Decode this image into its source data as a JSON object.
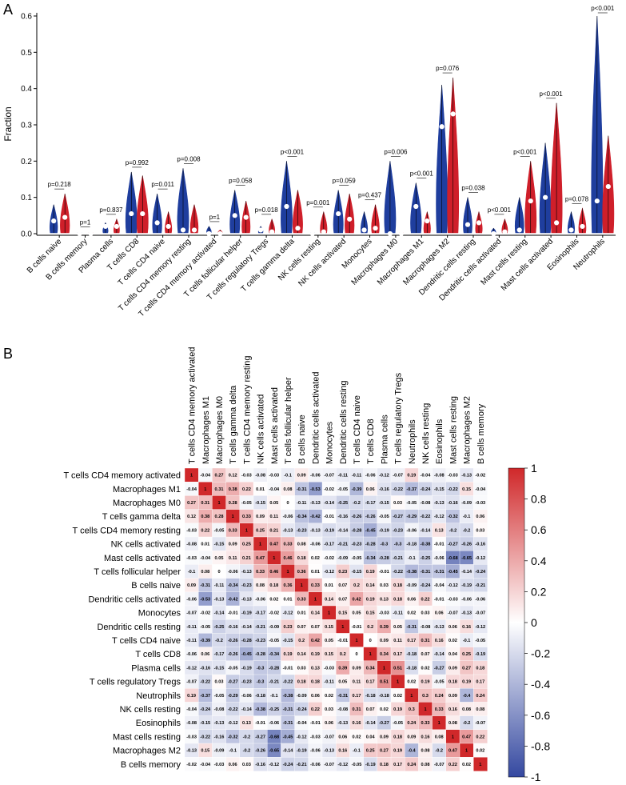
{
  "panel_a": {
    "letter": "A",
    "ylabel": "Fraction",
    "colors": {
      "group1": "#1f3e9e",
      "group2": "#cf1f2a"
    },
    "chart_data": {
      "type": "violin",
      "ylabel": "Fraction",
      "ylim": [
        0,
        0.6
      ],
      "yticks": [
        "0.0",
        "0.1",
        "0.2",
        "0.3",
        "0.4",
        "0.5",
        "0.6"
      ],
      "categories": [
        "B cells naive",
        "B cells memory",
        "Plasma cells",
        "T cells CD8",
        "T cells CD4 naive",
        "T cells CD4 memory resting",
        "T cells CD4 memory activated",
        "T cells follicular helper",
        "T cells regulatory  Tregs",
        "T cells gamma delta",
        "NK cells resting",
        "NK cells activated",
        "Monocytes",
        "Macrophages M0",
        "Macrophages M1",
        "Macrophages M2",
        "Dendritic cells resting",
        "Dendritic cells activated",
        "Mast cells resting",
        "Mast cells activated",
        "Eosinophils",
        "Neutrophils"
      ],
      "pvalues": [
        "p=0.218",
        "p=1",
        "p=0.837",
        "p=0.992",
        "p=0.011",
        "p=0.008",
        "p=1",
        "p=0.058",
        "p=0.018",
        "p<0.001",
        "p=0.001",
        "p=0.059",
        "p=0.437",
        "p=0.006",
        "p<0.001",
        "p=0.076",
        "p=0.038",
        "p<0.001",
        "p<0.001",
        "p<0.001",
        "p=0.078",
        "p<0.001"
      ],
      "series": [
        {
          "name": "group1",
          "max": [
            0.08,
            0.005,
            0.03,
            0.17,
            0.11,
            0.18,
            0.02,
            0.12,
            0.02,
            0.2,
            0.005,
            0.12,
            0.06,
            0.2,
            0.14,
            0.41,
            0.1,
            0.015,
            0.1,
            0.25,
            0.06,
            0.6
          ],
          "median": [
            0.035,
            0.0,
            0.02,
            0.055,
            0.03,
            0.01,
            0.0,
            0.05,
            0.01,
            0.075,
            0.0,
            0.055,
            0.01,
            0.0,
            0.075,
            0.295,
            0.025,
            0.0,
            0.01,
            0.1,
            0.01,
            0.09
          ]
        },
        {
          "name": "group2",
          "max": [
            0.11,
            0.005,
            0.04,
            0.16,
            0.06,
            0.08,
            0.01,
            0.09,
            0.04,
            0.12,
            0.06,
            0.11,
            0.08,
            0.005,
            0.06,
            0.43,
            0.06,
            0.04,
            0.2,
            0.36,
            0.07,
            0.27
          ],
          "median": [
            0.045,
            0.0,
            0.02,
            0.055,
            0.02,
            0.01,
            0.0,
            0.045,
            0.005,
            0.015,
            0.005,
            0.04,
            0.015,
            0.0,
            0.035,
            0.33,
            0.03,
            0.005,
            0.09,
            0.03,
            0.02,
            0.13
          ]
        }
      ]
    }
  },
  "panel_b": {
    "letter": "B",
    "chart_data": {
      "type": "heatmap",
      "col_labels": [
        "T cells CD4 memory activated",
        "Macrophages M1",
        "Macrophages M0",
        "T cells gamma delta",
        "T cells CD4 memory resting",
        "NK cells activated",
        "Mast cells activated",
        "T cells follicular helper",
        "B cells naive",
        "Dendritic cells activated",
        "Monocytes",
        "Dendritic cells resting",
        "T cells CD4 naive",
        "T cells CD8",
        "Plasma cells",
        "T cells regulatory  Tregs",
        "Neutrophils",
        "NK cells resting",
        "Eosinophils",
        "Mast cells resting",
        "Macrophages M2",
        "B cells memory"
      ],
      "row_labels": [
        "T cells CD4 memory activated",
        "Macrophages M1",
        "Macrophages M0",
        "T cells gamma delta",
        "T cells CD4 memory resting",
        "NK cells activated",
        "Mast cells activated",
        "T cells follicular helper",
        "B cells naive",
        "Dendritic cells activated",
        "Monocytes",
        "Dendritic cells resting",
        "T cells CD4 naive",
        "T cells CD8",
        "Plasma cells",
        "T cells regulatory  Tregs",
        "Neutrophils",
        "NK cells resting",
        "Eosinophils",
        "Mast cells resting",
        "Macrophages M2",
        "B cells memory"
      ],
      "values": [
        [
          "1",
          "-0.04",
          "0.27",
          "0.12",
          "-0.03",
          "-0.08",
          "-0.03",
          "-0.1",
          "0.09",
          "-0.06",
          "-0.07",
          "-0.11",
          "-0.11",
          "-0.06",
          "-0.12",
          "-0.07",
          "0.19",
          "-0.04",
          "-0.08",
          "-0.03",
          "-0.13",
          "-0.02"
        ],
        [
          "-0.04",
          "1",
          "0.31",
          "0.38",
          "0.22",
          "0.01",
          "-0.04",
          "0.08",
          "-0.31",
          "-0.53",
          "-0.02",
          "-0.05",
          "-0.39",
          "0.06",
          "-0.16",
          "-0.22",
          "-0.37",
          "-0.24",
          "-0.15",
          "-0.22",
          "0.15",
          "-0.04"
        ],
        [
          "0.27",
          "0.31",
          "1",
          "0.28",
          "-0.05",
          "-0.15",
          "0.05",
          "0",
          "-0.11",
          "-0.13",
          "-0.14",
          "-0.25",
          "-0.2",
          "-0.17",
          "-0.15",
          "0.03",
          "-0.05",
          "-0.08",
          "-0.13",
          "-0.16",
          "-0.09",
          "-0.03"
        ],
        [
          "0.12",
          "0.38",
          "0.28",
          "1",
          "0.33",
          "0.09",
          "0.11",
          "-0.06",
          "-0.34",
          "-0.42",
          "-0.01",
          "-0.16",
          "-0.26",
          "-0.26",
          "-0.05",
          "-0.27",
          "-0.29",
          "-0.22",
          "-0.12",
          "-0.32",
          "-0.1",
          "0.06"
        ],
        [
          "-0.03",
          "0.22",
          "-0.05",
          "0.33",
          "1",
          "0.25",
          "0.21",
          "-0.13",
          "-0.23",
          "-0.13",
          "-0.19",
          "-0.14",
          "-0.28",
          "-0.45",
          "-0.19",
          "-0.23",
          "-0.06",
          "-0.14",
          "0.13",
          "-0.2",
          "-0.2",
          "0.03"
        ],
        [
          "-0.08",
          "0.01",
          "-0.15",
          "0.09",
          "0.25",
          "1",
          "0.47",
          "0.33",
          "0.08",
          "-0.06",
          "-0.17",
          "-0.21",
          "-0.23",
          "-0.28",
          "-0.3",
          "-0.3",
          "-0.18",
          "-0.38",
          "-0.01",
          "-0.27",
          "-0.26",
          "-0.16"
        ],
        [
          "-0.03",
          "-0.04",
          "0.05",
          "0.11",
          "0.21",
          "0.47",
          "1",
          "0.46",
          "0.18",
          "0.02",
          "-0.02",
          "-0.09",
          "-0.05",
          "-0.34",
          "-0.28",
          "-0.21",
          "-0.1",
          "-0.25",
          "-0.06",
          "-0.68",
          "-0.65",
          "-0.12"
        ],
        [
          "-0.1",
          "0.08",
          "0",
          "-0.06",
          "-0.13",
          "0.33",
          "0.46",
          "1",
          "0.36",
          "0.01",
          "-0.12",
          "0.23",
          "-0.15",
          "0.19",
          "-0.01",
          "-0.22",
          "-0.38",
          "-0.31",
          "-0.31",
          "-0.45",
          "-0.14",
          "-0.24"
        ],
        [
          "0.09",
          "-0.31",
          "-0.11",
          "-0.34",
          "-0.23",
          "0.08",
          "0.18",
          "0.36",
          "1",
          "0.33",
          "0.01",
          "0.07",
          "0.2",
          "0.14",
          "0.03",
          "0.18",
          "-0.09",
          "-0.24",
          "-0.04",
          "-0.12",
          "-0.19",
          "-0.21"
        ],
        [
          "-0.06",
          "-0.53",
          "-0.13",
          "-0.42",
          "-0.13",
          "-0.06",
          "0.02",
          "0.01",
          "0.33",
          "1",
          "0.14",
          "0.07",
          "0.42",
          "0.19",
          "0.13",
          "0.18",
          "0.06",
          "0.22",
          "-0.01",
          "-0.03",
          "-0.06",
          "-0.06"
        ],
        [
          "-0.07",
          "-0.02",
          "-0.14",
          "-0.01",
          "-0.19",
          "-0.17",
          "-0.02",
          "-0.12",
          "0.01",
          "0.14",
          "1",
          "0.15",
          "0.05",
          "0.15",
          "-0.03",
          "-0.11",
          "0.02",
          "0.03",
          "0.06",
          "-0.07",
          "-0.13",
          "-0.07"
        ],
        [
          "-0.11",
          "-0.05",
          "-0.25",
          "-0.16",
          "-0.14",
          "-0.21",
          "-0.09",
          "0.23",
          "0.07",
          "0.07",
          "0.15",
          "1",
          "-0.01",
          "0.2",
          "0.39",
          "0.05",
          "-0.31",
          "-0.08",
          "-0.13",
          "0.06",
          "0.16",
          "-0.12"
        ],
        [
          "-0.11",
          "-0.39",
          "-0.2",
          "-0.26",
          "-0.28",
          "-0.23",
          "-0.05",
          "-0.15",
          "0.2",
          "0.42",
          "0.05",
          "-0.01",
          "1",
          "0",
          "0.09",
          "0.11",
          "0.17",
          "0.31",
          "0.16",
          "0.02",
          "-0.1",
          "-0.05"
        ],
        [
          "-0.06",
          "0.06",
          "-0.17",
          "-0.26",
          "-0.45",
          "-0.28",
          "-0.34",
          "0.19",
          "0.14",
          "0.19",
          "0.15",
          "0.2",
          "0",
          "1",
          "0.34",
          "0.17",
          "-0.18",
          "0.07",
          "-0.14",
          "0.04",
          "0.25",
          "-0.19"
        ],
        [
          "-0.12",
          "-0.16",
          "-0.15",
          "-0.05",
          "-0.19",
          "-0.3",
          "-0.28",
          "-0.01",
          "0.03",
          "0.13",
          "-0.03",
          "0.39",
          "0.09",
          "0.34",
          "1",
          "0.51",
          "-0.18",
          "0.02",
          "-0.27",
          "0.09",
          "0.27",
          "0.18"
        ],
        [
          "-0.07",
          "-0.22",
          "0.03",
          "-0.27",
          "-0.23",
          "-0.3",
          "-0.21",
          "-0.22",
          "0.18",
          "0.18",
          "-0.11",
          "0.05",
          "0.11",
          "0.17",
          "0.51",
          "1",
          "0.02",
          "0.19",
          "-0.05",
          "0.18",
          "0.19",
          "0.17"
        ],
        [
          "0.19",
          "-0.37",
          "-0.05",
          "-0.29",
          "-0.06",
          "-0.18",
          "-0.1",
          "-0.38",
          "-0.09",
          "0.06",
          "0.02",
          "-0.31",
          "0.17",
          "-0.18",
          "-0.18",
          "0.02",
          "1",
          "0.3",
          "0.24",
          "0.09",
          "-0.4",
          "0.24"
        ],
        [
          "-0.04",
          "-0.24",
          "-0.08",
          "-0.22",
          "-0.14",
          "-0.38",
          "-0.25",
          "-0.31",
          "-0.24",
          "0.22",
          "0.03",
          "-0.08",
          "0.31",
          "0.07",
          "0.02",
          "0.19",
          "0.3",
          "1",
          "0.33",
          "0.16",
          "0.08",
          "0.08"
        ],
        [
          "-0.08",
          "-0.15",
          "-0.13",
          "-0.12",
          "0.13",
          "-0.01",
          "-0.06",
          "-0.31",
          "-0.04",
          "-0.01",
          "0.06",
          "-0.13",
          "0.16",
          "-0.14",
          "-0.27",
          "-0.05",
          "0.24",
          "0.33",
          "1",
          "0.08",
          "-0.2",
          "-0.07"
        ],
        [
          "-0.03",
          "-0.22",
          "-0.16",
          "-0.32",
          "-0.2",
          "-0.27",
          "-0.68",
          "-0.45",
          "-0.12",
          "-0.03",
          "-0.07",
          "0.06",
          "0.02",
          "0.04",
          "0.09",
          "0.18",
          "0.09",
          "0.16",
          "0.08",
          "1",
          "0.47",
          "0.22"
        ],
        [
          "-0.13",
          "0.15",
          "-0.09",
          "-0.1",
          "-0.2",
          "-0.26",
          "-0.65",
          "-0.14",
          "-0.19",
          "-0.06",
          "-0.13",
          "0.16",
          "-0.1",
          "0.25",
          "0.27",
          "0.19",
          "-0.4",
          "0.08",
          "-0.2",
          "0.47",
          "1",
          "0.02"
        ],
        [
          "-0.02",
          "-0.04",
          "-0.03",
          "0.06",
          "0.03",
          "-0.16",
          "-0.12",
          "-0.24",
          "-0.21",
          "-0.06",
          "-0.07",
          "-0.12",
          "-0.05",
          "-0.19",
          "0.18",
          "0.17",
          "0.24",
          "0.08",
          "-0.07",
          "0.22",
          "0.02",
          "1"
        ]
      ],
      "colorbar": {
        "min": -1,
        "max": 1,
        "ticks": [
          "1",
          "0.8",
          "0.6",
          "0.4",
          "0.2",
          "0",
          "-0.2",
          "-0.4",
          "-0.6",
          "-0.8",
          "-1"
        ]
      }
    }
  }
}
